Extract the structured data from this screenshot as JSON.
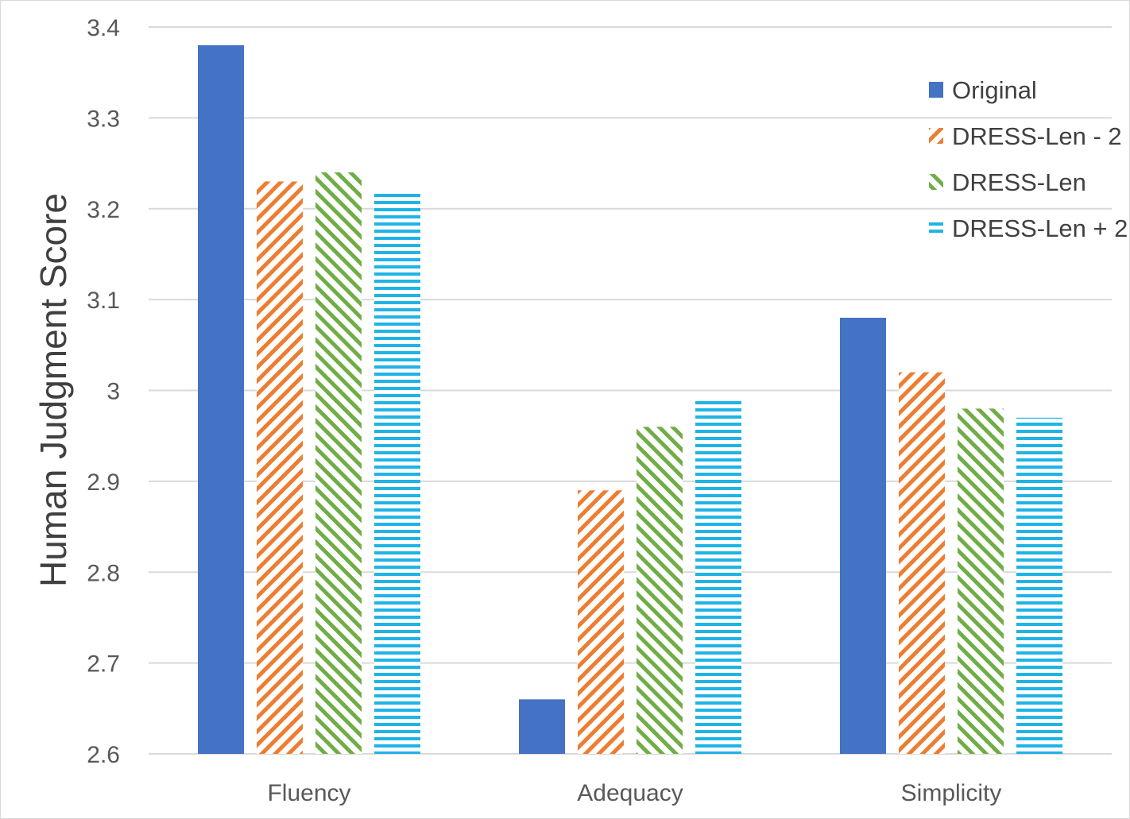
{
  "chart_data": {
    "type": "bar",
    "title": "",
    "xlabel": "",
    "ylabel": "Human Judgment Score",
    "ylim": [
      2.6,
      3.4
    ],
    "yticks": [
      "2.6",
      "2.7",
      "2.8",
      "2.9",
      "3",
      "3.1",
      "3.2",
      "3.3",
      "3.4"
    ],
    "categories": [
      "Fluency",
      "Adequacy",
      "Simplicity"
    ],
    "series": [
      {
        "name": "Original",
        "values": [
          3.38,
          2.66,
          3.08
        ],
        "color": "#4472c4",
        "pattern": "solid"
      },
      {
        "name": "DRESS-Len - 2",
        "values": [
          3.23,
          2.89,
          3.02
        ],
        "color": "#ed7d31",
        "pattern": "diagonal-down"
      },
      {
        "name": "DRESS-Len",
        "values": [
          3.24,
          2.96,
          2.98
        ],
        "color": "#70ad47",
        "pattern": "diagonal-up"
      },
      {
        "name": "DRESS-Len + 2",
        "values": [
          3.22,
          2.99,
          2.97
        ],
        "color": "#1fb4e6",
        "pattern": "horizontal"
      }
    ],
    "grid": true,
    "legend_position": "top-right"
  }
}
